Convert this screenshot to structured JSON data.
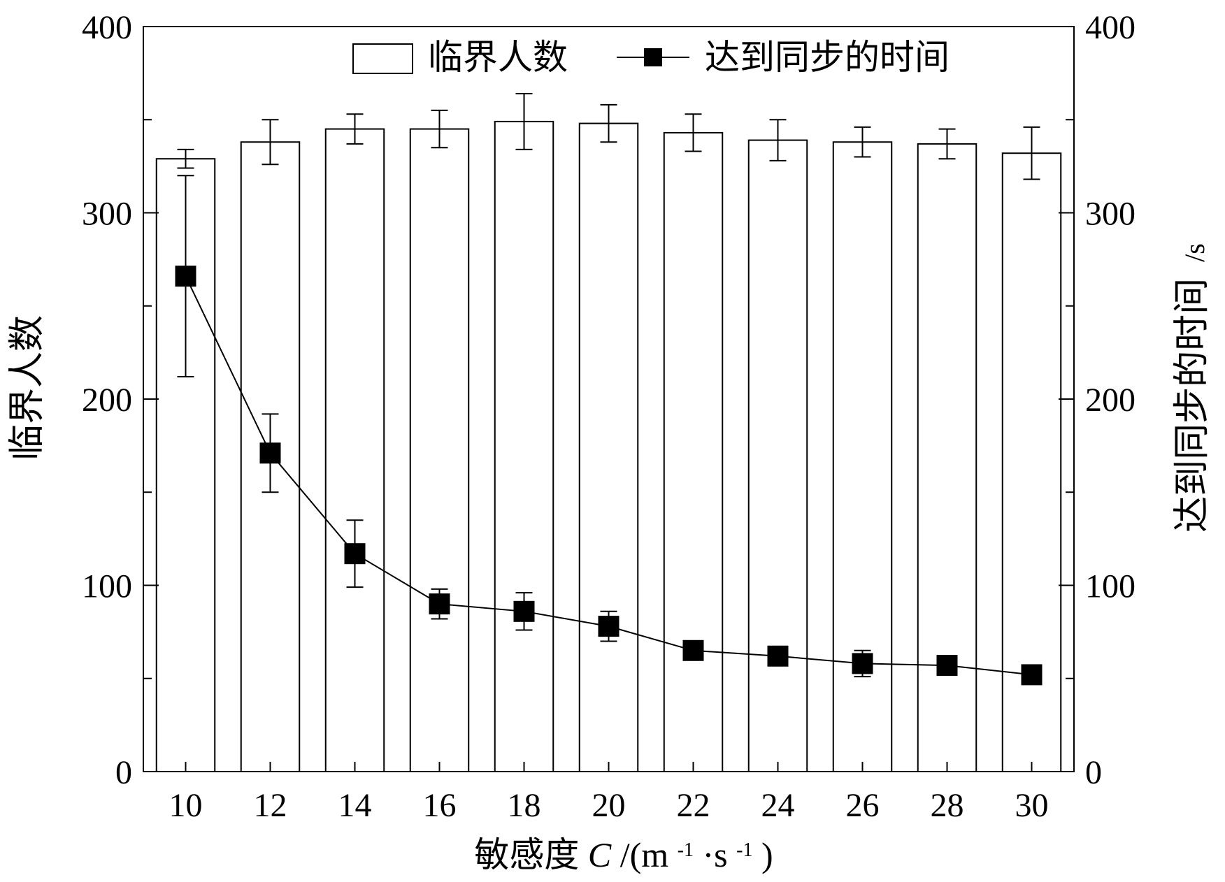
{
  "chart_data": {
    "type": "bar+line",
    "x": [
      10,
      12,
      14,
      16,
      18,
      20,
      22,
      24,
      26,
      28,
      30
    ],
    "x_tick_labels": [
      "10",
      "12",
      "14",
      "16",
      "18",
      "20",
      "22",
      "24",
      "26",
      "28",
      "30"
    ],
    "xlabel_prefix": "敏感度",
    "xlabel_var": "C",
    "xlabel_units_open": " /(m",
    "xlabel_sup1": "-1",
    "xlabel_units_mid": "·s",
    "xlabel_sup2": "-1",
    "xlabel_units_close": ")",
    "left_axis": {
      "label": "临界人数",
      "ylim": [
        0,
        400
      ],
      "ticks": [
        "0",
        "100",
        "200",
        "300",
        "400"
      ]
    },
    "right_axis": {
      "label": "达到同步的时间",
      "unit": "/s",
      "ylim": [
        0,
        400
      ],
      "ticks": [
        "0",
        "100",
        "200",
        "300",
        "400"
      ]
    },
    "legend_position": "top",
    "series": [
      {
        "name": "临界人数",
        "kind": "bar",
        "axis": "left",
        "values": [
          329,
          338,
          345,
          345,
          349,
          348,
          343,
          339,
          338,
          337,
          332
        ],
        "errors": [
          5,
          12,
          8,
          10,
          15,
          10,
          10,
          11,
          8,
          8,
          14
        ]
      },
      {
        "name": "达到同步的时间",
        "kind": "line-square",
        "axis": "right",
        "values": [
          266,
          171,
          117,
          90,
          86,
          78,
          65,
          62,
          58,
          57,
          52
        ],
        "errors": [
          54,
          21,
          18,
          8,
          10,
          8,
          0,
          0,
          7,
          0,
          0
        ]
      }
    ]
  }
}
